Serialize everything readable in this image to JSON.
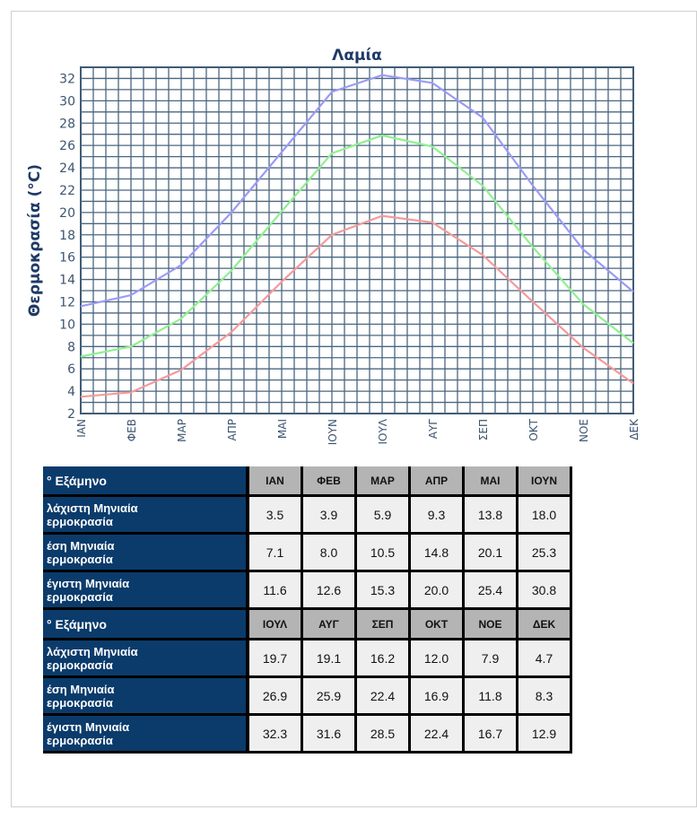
{
  "chart_data": {
    "type": "line",
    "title": "Λαμία",
    "ylabel": "Θερμοκρασία (°C)",
    "xlabel": "",
    "categories": [
      "ΙΑΝ",
      "ΦΕΒ",
      "ΜΑΡ",
      "ΑΠΡ",
      "ΜΑΙ",
      "ΙΟΥΝ",
      "ΙΟΥΛ",
      "ΑΥΓ",
      "ΣΕΠ",
      "ΟΚΤ",
      "ΝΟΕ",
      "ΔΕΚ"
    ],
    "ylim": [
      2,
      33
    ],
    "yticks": [
      2,
      4,
      6,
      8,
      10,
      12,
      14,
      16,
      18,
      20,
      22,
      24,
      26,
      28,
      30,
      32
    ],
    "grid": true,
    "series": [
      {
        "values": [
          11.6,
          12.6,
          15.3,
          20.0,
          25.4,
          30.8,
          32.3,
          31.6,
          28.5,
          22.4,
          16.7,
          12.9
        ],
        "color": "#9b9bf5"
      },
      {
        "values": [
          7.1,
          8.0,
          10.5,
          14.8,
          20.1,
          25.3,
          26.9,
          25.9,
          22.4,
          16.9,
          11.8,
          8.3
        ],
        "color": "#8ff08f"
      },
      {
        "values": [
          3.5,
          3.9,
          5.9,
          9.3,
          13.8,
          18.0,
          19.7,
          19.1,
          16.2,
          12.0,
          7.9,
          4.7
        ],
        "color": "#f59a9a"
      }
    ]
  },
  "table": {
    "semester1_label": "° Εξάμηνο",
    "semester2_label": "° Εξάμηνο",
    "row_labels": [
      "λάχιστη Μηνιαία\nερμοκρασία",
      "έση Μηνιαία\nερμοκρασία",
      "έγιστη Μηνιαία\nερμοκρασία"
    ],
    "months1": [
      "ΙΑΝ",
      "ΦΕΒ",
      "ΜΑΡ",
      "ΑΠΡ",
      "ΜΑΙ",
      "ΙΟΥΝ"
    ],
    "months2": [
      "ΙΟΥΛ",
      "ΑΥΓ",
      "ΣΕΠ",
      "ΟΚΤ",
      "ΝΟΕ",
      "ΔΕΚ"
    ],
    "rows1": [
      [
        "3.5",
        "3.9",
        "5.9",
        "9.3",
        "13.8",
        "18.0"
      ],
      [
        "7.1",
        "8.0",
        "10.5",
        "14.8",
        "20.1",
        "25.3"
      ],
      [
        "11.6",
        "12.6",
        "15.3",
        "20.0",
        "25.4",
        "30.8"
      ]
    ],
    "rows2": [
      [
        "19.7",
        "19.1",
        "16.2",
        "12.0",
        "7.9",
        "4.7"
      ],
      [
        "26.9",
        "25.9",
        "22.4",
        "16.9",
        "11.8",
        "8.3"
      ],
      [
        "32.3",
        "31.6",
        "28.5",
        "22.4",
        "16.7",
        "12.9"
      ]
    ]
  }
}
